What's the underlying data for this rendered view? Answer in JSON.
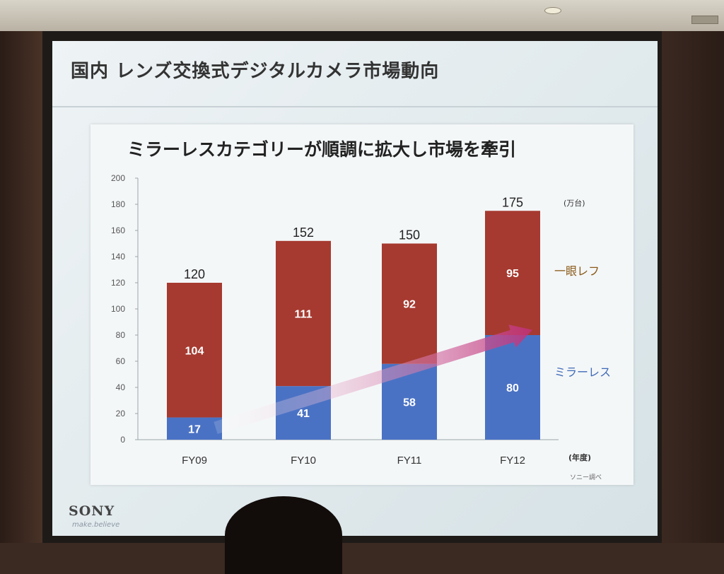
{
  "slide": {
    "title": "国内 レンズ交換式デジタルカメラ市場動向",
    "headline": "ミラーレスカテゴリーが順調に拡大し市場を牽引",
    "logo": "SONY",
    "tagline": "make.believe",
    "colors": {
      "dslr": "#a63a30",
      "mirrorless": "#4a72c4",
      "arrow": "#c0307a",
      "dslr_legend_text": "#8a5a18",
      "mirrorless_legend_text": "#3e6ab8"
    }
  },
  "chart_data": {
    "type": "bar",
    "stacked": true,
    "categories": [
      "FY09",
      "FY10",
      "FY11",
      "FY12"
    ],
    "series": [
      {
        "name": "ミラーレス",
        "values": [
          17,
          41,
          58,
          80
        ]
      },
      {
        "name": "一眼レフ",
        "values": [
          104,
          111,
          92,
          95
        ]
      }
    ],
    "totals": [
      120,
      152,
      150,
      175
    ],
    "ylim": [
      0,
      200
    ],
    "yticks": [
      0,
      20,
      40,
      60,
      80,
      100,
      120,
      140,
      160,
      180,
      200
    ],
    "y_unit": "(万台)",
    "x_unit": "(年度)",
    "source": "ソニー調べ",
    "legend_position": "right",
    "annotation": "upward arrow from FY09 to FY12 indicating mirrorless growth"
  }
}
